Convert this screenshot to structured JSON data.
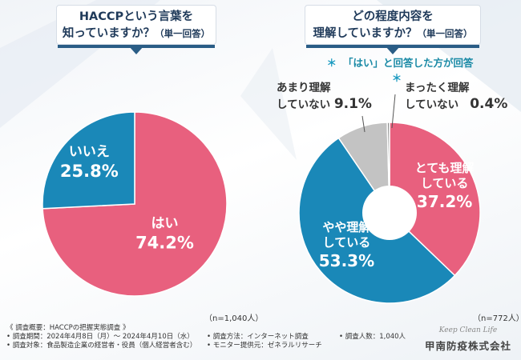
{
  "chart_data": [
    {
      "type": "pie",
      "title": "HACCPという言葉を知っていますか？（単一回答）",
      "title_line1": "HACCPという言葉を",
      "title_line2": "知っていますか？",
      "title_note": "（単一回答）",
      "sample_label": "（n=1,040人）",
      "categories": [
        "はい",
        "いいえ"
      ],
      "values": [
        74.2,
        25.8
      ],
      "value_labels": [
        "74.2%",
        "25.8%"
      ],
      "colors": [
        "#e8607e",
        "#1a88b8"
      ]
    },
    {
      "type": "pie",
      "title": "どの程度内容を理解していますか？（単一回答）",
      "title_line1": "どの程度内容を",
      "title_line2": "理解していますか？",
      "title_note": "（単一回答）",
      "subtitle": "「はい」と回答した方が回答",
      "sample_label": "（n=772人）",
      "categories": [
        "とても理解している",
        "やや理解している",
        "あまり理解していない",
        "まったく理解していない"
      ],
      "label_lines": [
        [
          "とても理解",
          "している"
        ],
        [
          "やや理解",
          "している"
        ],
        [
          "あまり理解",
          "していない"
        ],
        [
          "まったく理解",
          "していない"
        ]
      ],
      "values": [
        37.2,
        53.3,
        9.1,
        0.4
      ],
      "value_labels": [
        "37.2%",
        "53.3%",
        "9.1%",
        "0.4%"
      ],
      "colors": [
        "#e8607e",
        "#1a88b8",
        "#c3c3c3",
        "#909090"
      ]
    }
  ],
  "subnote_star": "＊",
  "footer": {
    "overview": "《 調査概要：HACCPの把握実態調査 》",
    "period": "• 調査期間：2024年4月8日（月）～ 2024年4月10日（水）",
    "method": "• 調査方法：インターネット調査",
    "count": "• 調査人数：1,040人",
    "target": "• 調査対象：食品製造企業の経営者・役員（個人経営者含む）",
    "provider": "• モニター提供元：ゼネラルリサーチ"
  },
  "brand": {
    "tagline": "Keep Clean Life",
    "name": "甲南防疫株式会社"
  }
}
